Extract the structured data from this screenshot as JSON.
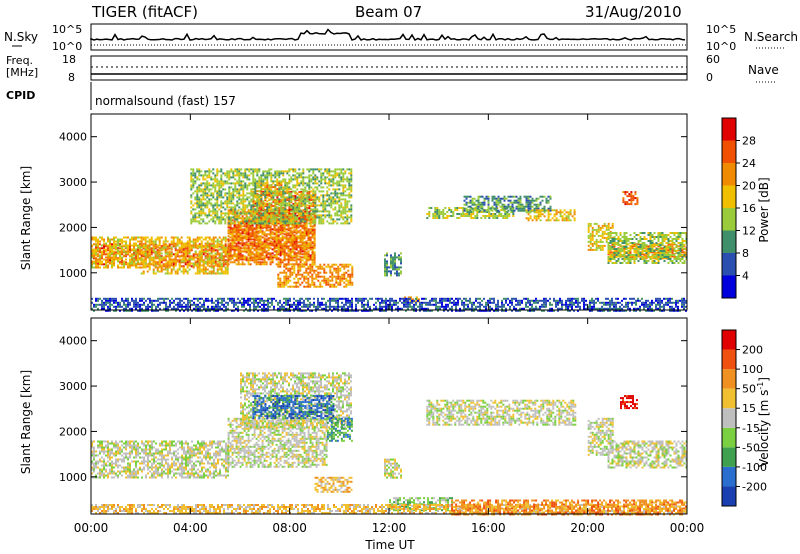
{
  "header": {
    "radar": "TIGER (fitACF)",
    "beam": "Beam 07",
    "date": "31/Aug/2010"
  },
  "panels": {
    "nsky": {
      "label": "N.Sky",
      "ticks_left": [
        "10^5",
        "10^0"
      ],
      "ticks_right": [
        "10^5",
        "10^0"
      ],
      "right_label": "N.Search"
    },
    "freq": {
      "label": "Freq.",
      "unit": "[MHz]",
      "ticks_left": [
        "18",
        "8"
      ],
      "ticks_right": [
        "60",
        "0"
      ],
      "right_label": "Nave"
    },
    "cpid": {
      "label": "CPID",
      "text": "normalsound (fast) 157"
    }
  },
  "colorbars": {
    "power": {
      "title": "Power [dB]",
      "ticks": [
        "28",
        "24",
        "20",
        "16",
        "12",
        "8",
        "4"
      ],
      "colors": [
        "#0000dd",
        "#2a4fb0",
        "#3f8f6a",
        "#9acb3a",
        "#f0c000",
        "#f08a00",
        "#f05000",
        "#e00000"
      ]
    },
    "velocity": {
      "title_main": "Velocity [m s",
      "title_sup": "-1",
      "title_end": "]",
      "ticks": [
        "200",
        "100",
        "50",
        "15",
        "-15",
        "-50",
        "-100",
        "-200"
      ],
      "colors": [
        "#1a3fb0",
        "#2a6fd0",
        "#3fa050",
        "#7ad040",
        "#bfbfbf",
        "#f0c030",
        "#f09020",
        "#f05010",
        "#e00000"
      ]
    }
  },
  "chart_data": {
    "type": "heatmap",
    "xlabel": "Time UT",
    "ylabel": "Slant Range [km]",
    "x_ticks": [
      "00:00",
      "04:00",
      "08:00",
      "12:00",
      "16:00",
      "20:00",
      "00:00"
    ],
    "xlim_hours": [
      0,
      24
    ],
    "y_ticks": [
      "4000",
      "3000",
      "2000",
      "1000"
    ],
    "ylim_km": [
      180,
      4500
    ],
    "power_regions": [
      {
        "t0": 0.0,
        "t1": 2.0,
        "r0": 1200,
        "r1": 1650,
        "level": 6
      },
      {
        "t0": 0.0,
        "t1": 2.0,
        "r0": 1100,
        "r1": 1800,
        "level": 4
      },
      {
        "t0": 2.0,
        "t1": 5.5,
        "r0": 1150,
        "r1": 1650,
        "level": 6
      },
      {
        "t0": 2.0,
        "t1": 5.5,
        "r0": 1000,
        "r1": 1800,
        "level": 4
      },
      {
        "t0": 5.5,
        "t1": 9.0,
        "r0": 1300,
        "r1": 2200,
        "level": 6
      },
      {
        "t0": 5.5,
        "t1": 9.0,
        "r0": 1200,
        "r1": 2400,
        "level": 5
      },
      {
        "t0": 6.5,
        "t1": 9.0,
        "r0": 2200,
        "r1": 2800,
        "level": 6
      },
      {
        "t0": 6.5,
        "t1": 8.0,
        "r0": 2700,
        "r1": 3000,
        "level": 5
      },
      {
        "t0": 7.5,
        "t1": 10.5,
        "r0": 700,
        "r1": 1200,
        "level": 5
      },
      {
        "t0": 4.0,
        "t1": 10.5,
        "r0": 2100,
        "r1": 3300,
        "level": 3
      },
      {
        "t0": 11.8,
        "t1": 12.5,
        "r0": 950,
        "r1": 1450,
        "level": 2
      },
      {
        "t0": 12.6,
        "t1": 13.2,
        "r0": 350,
        "r1": 480,
        "level": 5
      },
      {
        "t0": 13.5,
        "t1": 17.0,
        "r0": 2200,
        "r1": 2450,
        "level": 3
      },
      {
        "t0": 15.0,
        "t1": 18.5,
        "r0": 2350,
        "r1": 2700,
        "level": 2
      },
      {
        "t0": 17.5,
        "t1": 19.5,
        "r0": 2150,
        "r1": 2400,
        "level": 4
      },
      {
        "t0": 20.0,
        "t1": 21.0,
        "r0": 1500,
        "r1": 2100,
        "level": 4
      },
      {
        "t0": 20.8,
        "t1": 24.0,
        "r0": 1300,
        "r1": 1650,
        "level": 5
      },
      {
        "t0": 20.8,
        "t1": 24.0,
        "r0": 1200,
        "r1": 1900,
        "level": 3
      },
      {
        "t0": 21.4,
        "t1": 22.0,
        "r0": 2500,
        "r1": 2800,
        "level": 6
      },
      {
        "t0": 0.0,
        "t1": 24.0,
        "r0": 180,
        "r1": 450,
        "level": 1
      }
    ],
    "velocity_regions": [
      {
        "t0": 0.0,
        "t1": 5.5,
        "r0": 1000,
        "r1": 1800,
        "level": 4
      },
      {
        "t0": 5.5,
        "t1": 9.5,
        "r0": 1200,
        "r1": 2300,
        "level": 4
      },
      {
        "t0": 9.0,
        "t1": 10.5,
        "r0": 650,
        "r1": 1000,
        "level": 5
      },
      {
        "t0": 6.0,
        "t1": 10.5,
        "r0": 2100,
        "r1": 3300,
        "level": 4
      },
      {
        "t0": 6.5,
        "t1": 9.8,
        "r0": 2300,
        "r1": 2800,
        "level": 1
      },
      {
        "t0": 9.5,
        "t1": 10.5,
        "r0": 1800,
        "r1": 2300,
        "level": 2
      },
      {
        "t0": 11.8,
        "t1": 12.5,
        "r0": 1000,
        "r1": 1400,
        "level": 4
      },
      {
        "t0": 12.0,
        "t1": 14.5,
        "r0": 250,
        "r1": 550,
        "level": 3
      },
      {
        "t0": 13.5,
        "t1": 19.5,
        "r0": 2150,
        "r1": 2700,
        "level": 4
      },
      {
        "t0": 20.0,
        "t1": 21.0,
        "r0": 1500,
        "r1": 2300,
        "level": 4
      },
      {
        "t0": 20.8,
        "t1": 24.0,
        "r0": 1200,
        "r1": 1800,
        "level": 4
      },
      {
        "t0": 21.3,
        "t1": 22.0,
        "r0": 2500,
        "r1": 2800,
        "level": 8
      },
      {
        "t0": 0.0,
        "t1": 24.0,
        "r0": 180,
        "r1": 400,
        "level": 5
      },
      {
        "t0": 14.5,
        "t1": 24.0,
        "r0": 180,
        "r1": 500,
        "level": 6
      }
    ]
  }
}
